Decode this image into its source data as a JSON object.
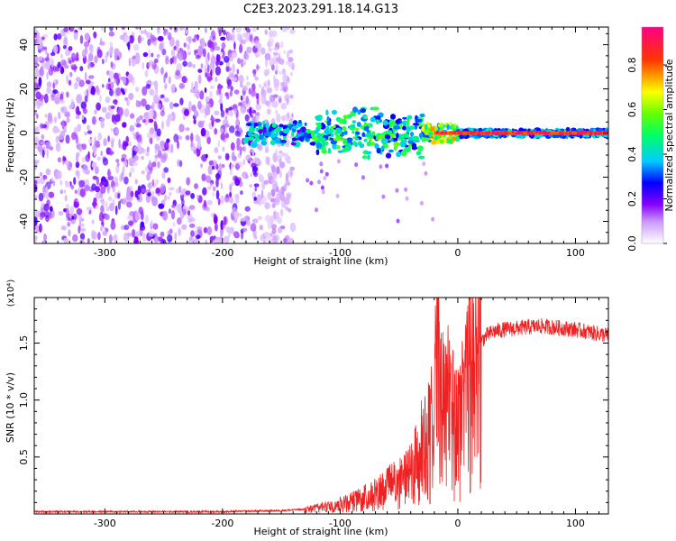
{
  "figure": {
    "title": "C2E3.2023.291.18.14.G13"
  },
  "chart_data": [
    {
      "type": "heatmap",
      "title": "C2E3.2023.291.18.14.G13",
      "xlabel": "Height of straight line (km)",
      "ylabel": "Frequency (Hz)",
      "xlim": [
        -360,
        128
      ],
      "ylim": [
        -50,
        48
      ],
      "x_ticks": [
        -300,
        -200,
        -100,
        0,
        100
      ],
      "x_tick_labels": [
        "-300",
        "-200",
        "-100",
        "0",
        "100"
      ],
      "y_ticks": [
        -40,
        -20,
        0,
        20,
        40
      ],
      "y_tick_labels": [
        "-40",
        "-20",
        "0",
        "20",
        "40"
      ],
      "grid": false,
      "colorbar": {
        "label": "Normalized spectral amplitude",
        "range": [
          0,
          0.97
        ],
        "ticks": [
          0.0,
          0.2,
          0.4,
          0.6,
          0.8
        ],
        "tick_labels": [
          "0.0",
          "0.2",
          "0.4",
          "0.6",
          "0.8"
        ],
        "colormap": [
          "#ffffff",
          "#8800ff",
          "#0000ff",
          "#00ffff",
          "#00ff00",
          "#ffff00",
          "#ff0000",
          "#ff0088"
        ]
      },
      "features": {
        "noise_region_x": [
          -360,
          -150
        ],
        "signal_start_x": -180,
        "signal_line_freq": 0,
        "signal_spread_at_-60km": 10,
        "signal_spread_at_0km": 2
      }
    },
    {
      "type": "line",
      "xlabel": "Height of straight line (km)",
      "ylabel": "SNR (10 * v/v)",
      "y_multiplier": "(x10⁴)",
      "xlim": [
        -360,
        128
      ],
      "ylim": [
        0,
        1.9
      ],
      "x_ticks": [
        -300,
        -200,
        -100,
        0,
        100
      ],
      "x_tick_labels": [
        "-300",
        "-200",
        "-100",
        "0",
        "100"
      ],
      "y_ticks": [
        0.5,
        1.0,
        1.5
      ],
      "y_tick_labels": [
        "0.5",
        "1.0",
        "1.5"
      ],
      "grid": false,
      "series": [
        {
          "color": "#ee2222",
          "x": [
            -360,
            -300,
            -200,
            -150,
            -130,
            -120,
            -110,
            -100,
            -90,
            -80,
            -70,
            -60,
            -50,
            -45,
            -40,
            -35,
            -30,
            -25,
            -20,
            -17,
            -15,
            -10,
            -5,
            0,
            5,
            10,
            15,
            20,
            25,
            30,
            40,
            50,
            60,
            70,
            80,
            90,
            100,
            110,
            120,
            128
          ],
          "y": [
            0.02,
            0.02,
            0.02,
            0.03,
            0.04,
            0.06,
            0.08,
            0.1,
            0.13,
            0.17,
            0.22,
            0.28,
            0.33,
            0.36,
            0.42,
            0.55,
            0.7,
            0.82,
            0.95,
            1.9,
            1.05,
            1.15,
            1.1,
            0.9,
            1.05,
            1.3,
            1.45,
            1.52,
            1.57,
            1.6,
            1.62,
            1.63,
            1.64,
            1.65,
            1.64,
            1.63,
            1.62,
            1.6,
            1.58,
            1.57
          ]
        }
      ]
    }
  ]
}
